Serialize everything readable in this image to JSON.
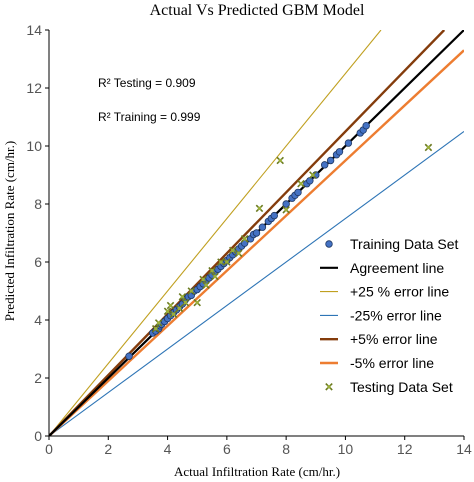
{
  "chart_data": {
    "type": "scatter",
    "title": "Actual Vs Predicted GBM Model",
    "xlabel": "Actual Infiltration Rate (cm/hr.)",
    "ylabel": "Predicted Infiltration Rate (cm/hr.)",
    "xlim": [
      0,
      14
    ],
    "ylim": [
      0,
      14
    ],
    "x_ticks": [
      "0",
      "2",
      "4",
      "6",
      "8",
      "10",
      "12",
      "14"
    ],
    "y_ticks": [
      "0",
      "2",
      "4",
      "6",
      "8",
      "10",
      "12",
      "14"
    ],
    "grid": false,
    "legend_position": "bottom-right",
    "annotations": [
      "R² Testing  = 0.909",
      "R²  Training = 0.999"
    ],
    "series": [
      {
        "name": "Training Data Set",
        "kind": "marker-circle",
        "color": "#4472c4",
        "edge": "#1f3864",
        "points": [
          [
            2.7,
            2.75
          ],
          [
            3.5,
            3.55
          ],
          [
            3.6,
            3.62
          ],
          [
            3.7,
            3.7
          ],
          [
            3.75,
            3.8
          ],
          [
            3.8,
            3.85
          ],
          [
            3.9,
            3.95
          ],
          [
            4.0,
            4.05
          ],
          [
            4.1,
            4.15
          ],
          [
            4.2,
            4.25
          ],
          [
            4.3,
            4.35
          ],
          [
            4.4,
            4.45
          ],
          [
            4.5,
            4.55
          ],
          [
            4.6,
            4.7
          ],
          [
            4.7,
            4.8
          ],
          [
            4.8,
            4.85
          ],
          [
            4.9,
            5.0
          ],
          [
            5.0,
            5.05
          ],
          [
            5.1,
            5.15
          ],
          [
            5.2,
            5.25
          ],
          [
            5.3,
            5.35
          ],
          [
            5.4,
            5.45
          ],
          [
            5.5,
            5.55
          ],
          [
            5.6,
            5.65
          ],
          [
            5.7,
            5.75
          ],
          [
            5.8,
            5.85
          ],
          [
            5.9,
            5.95
          ],
          [
            6.0,
            6.05
          ],
          [
            6.1,
            6.15
          ],
          [
            6.2,
            6.25
          ],
          [
            6.3,
            6.35
          ],
          [
            6.4,
            6.45
          ],
          [
            6.5,
            6.55
          ],
          [
            6.6,
            6.65
          ],
          [
            6.8,
            6.8
          ],
          [
            6.9,
            6.95
          ],
          [
            7.0,
            7.0
          ],
          [
            7.2,
            7.2
          ],
          [
            7.4,
            7.4
          ],
          [
            7.5,
            7.5
          ],
          [
            7.6,
            7.6
          ],
          [
            8.0,
            8.0
          ],
          [
            8.2,
            8.2
          ],
          [
            8.3,
            8.3
          ],
          [
            8.4,
            8.4
          ],
          [
            8.7,
            8.7
          ],
          [
            8.8,
            8.8
          ],
          [
            9.0,
            9.0
          ],
          [
            9.3,
            9.35
          ],
          [
            9.5,
            9.5
          ],
          [
            9.7,
            9.7
          ],
          [
            9.8,
            9.8
          ],
          [
            10.1,
            10.1
          ],
          [
            10.5,
            10.45
          ],
          [
            10.6,
            10.55
          ],
          [
            10.7,
            10.7
          ]
        ]
      },
      {
        "name": "Testing Data Set",
        "kind": "marker-x",
        "color": "#9aae3a",
        "edge": "#6b7a20",
        "points": [
          [
            3.6,
            3.7
          ],
          [
            3.7,
            3.9
          ],
          [
            4.0,
            4.3
          ],
          [
            4.1,
            4.5
          ],
          [
            4.2,
            4.2
          ],
          [
            4.4,
            4.4
          ],
          [
            4.5,
            4.8
          ],
          [
            4.6,
            4.6
          ],
          [
            4.8,
            5.0
          ],
          [
            5.0,
            4.6
          ],
          [
            5.2,
            5.4
          ],
          [
            5.3,
            5.2
          ],
          [
            5.5,
            5.7
          ],
          [
            5.6,
            5.5
          ],
          [
            5.8,
            6.0
          ],
          [
            6.0,
            6.0
          ],
          [
            6.2,
            6.4
          ],
          [
            6.4,
            6.3
          ],
          [
            6.6,
            6.8
          ],
          [
            7.1,
            7.85
          ],
          [
            7.8,
            9.5
          ],
          [
            8.0,
            7.8
          ],
          [
            8.5,
            8.7
          ],
          [
            8.9,
            9.0
          ],
          [
            12.8,
            9.95
          ]
        ]
      },
      {
        "name": "Agreement line",
        "kind": "line",
        "color": "#000000",
        "width": 2.2,
        "slope": 1.0
      },
      {
        "name": "+25 % error line",
        "kind": "line",
        "color": "#c0a020",
        "width": 1.1,
        "slope": 1.25
      },
      {
        "name": "-25% error line",
        "kind": "line",
        "color": "#2e75b6",
        "width": 1.1,
        "slope": 0.75
      },
      {
        "name": "+5% error line",
        "kind": "line",
        "color": "#843c0c",
        "width": 2.4,
        "slope": 1.05
      },
      {
        "name": "-5% error line",
        "kind": "line",
        "color": "#ed7d31",
        "width": 2.4,
        "slope": 0.95
      }
    ],
    "legend_order": [
      "Training Data Set",
      "Agreement line",
      "+25 % error line",
      "-25% error line",
      "+5% error line",
      "-5% error line",
      "Testing Data Set"
    ]
  }
}
